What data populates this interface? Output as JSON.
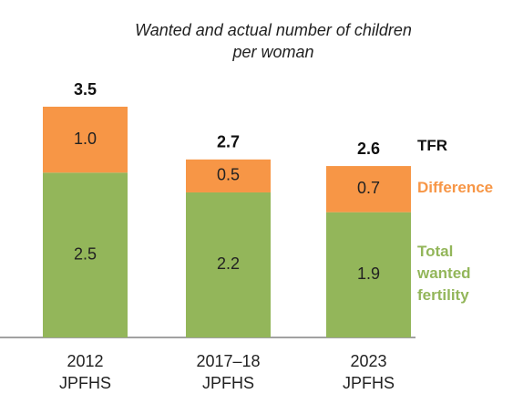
{
  "chart_data": {
    "type": "stacked_bar",
    "title": "Wanted and actual number of children per woman",
    "categories": [
      "2012 JPFHS",
      "2017–18 JPFHS",
      "2023 JPFHS"
    ],
    "series": [
      {
        "name": "Total wanted fertility",
        "color": "#93b65a",
        "values": [
          2.5,
          2.2,
          1.9
        ]
      },
      {
        "name": "Difference",
        "color": "#f79646",
        "values": [
          1.0,
          0.5,
          0.7
        ],
        "value_labels": [
          "1.0",
          "0.5",
          "0.7"
        ]
      }
    ],
    "totals": {
      "name": "TFR",
      "values": [
        3.5,
        2.7,
        2.6
      ]
    },
    "ylim": [
      0,
      3.5
    ]
  }
}
